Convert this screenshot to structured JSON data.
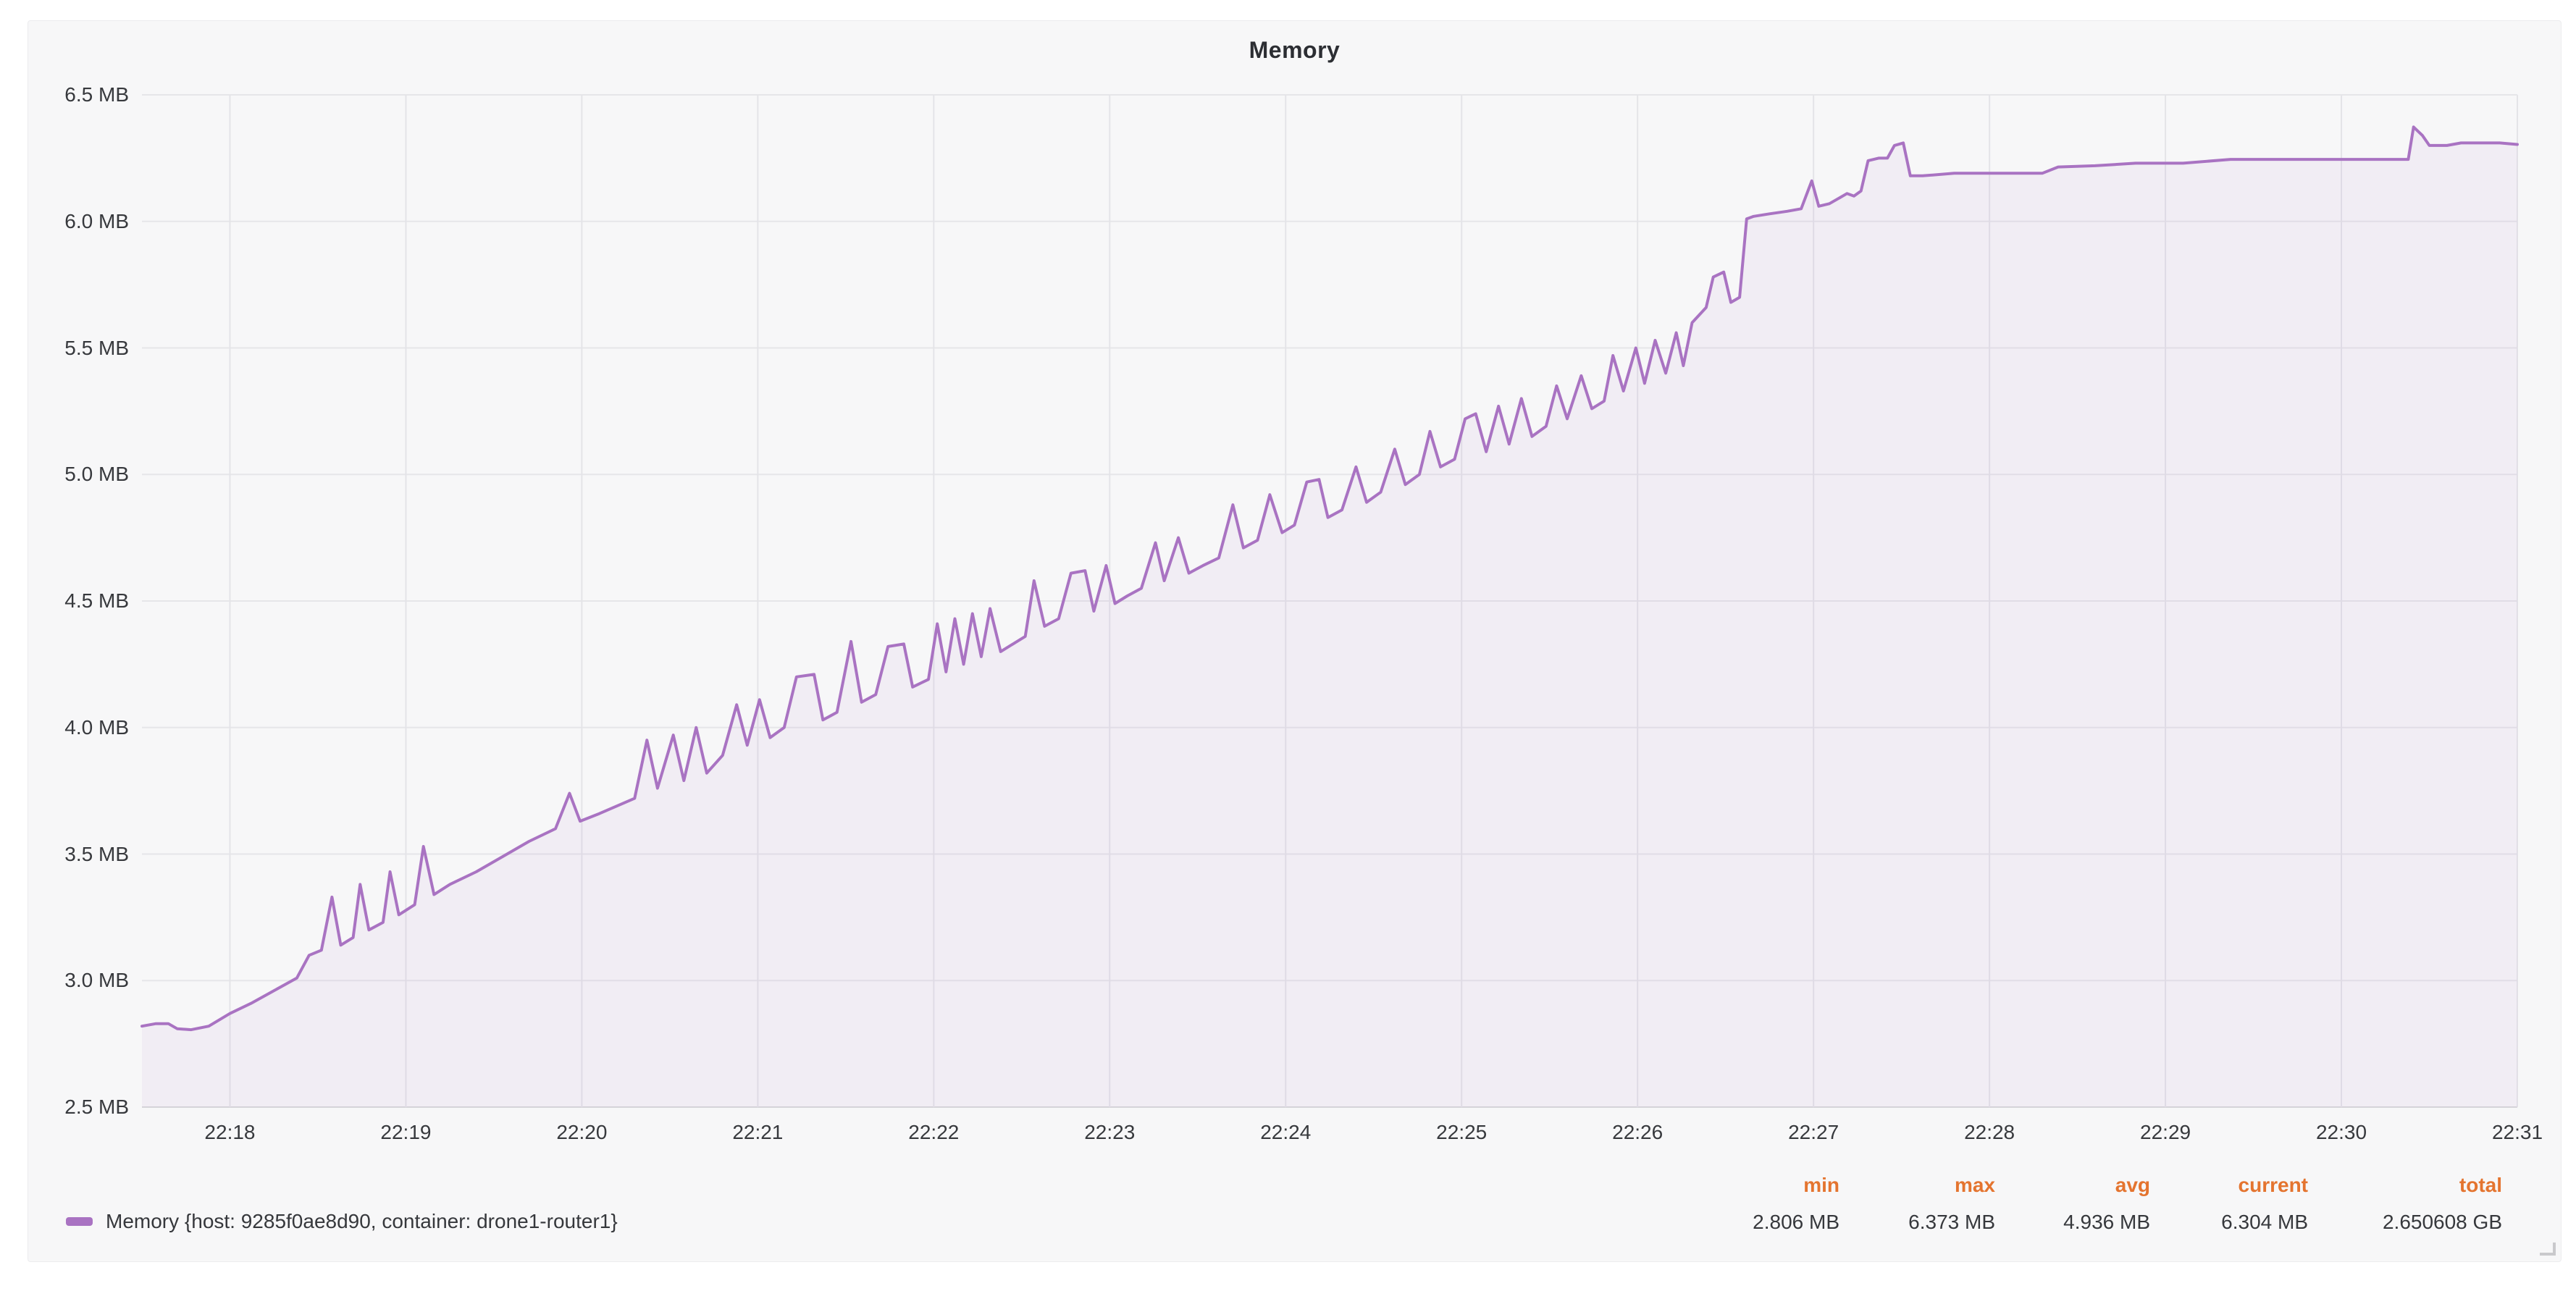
{
  "panel": {
    "title": "Memory"
  },
  "colors": {
    "page_bg": "#ffffff",
    "panel_bg": "#f7f7f8",
    "line": "#a973c2",
    "area_fill": "rgba(169,115,194,0.07)",
    "grid_h": "#e6e6e9",
    "grid_v": "#e4e4e8",
    "axis_bottom": "#d7d7da",
    "axis_text": "#37393d",
    "stat_header": "#e4742f",
    "title_text": "#2c2e33"
  },
  "legend": {
    "marker_icon": "series-color-swatch",
    "label": "Memory {host: 9285f0ae8d90, container: drone1-router1}"
  },
  "stats": {
    "columns": [
      {
        "key": "min",
        "label": "min",
        "value": "2.806 MB",
        "right_offset": 996
      },
      {
        "key": "max",
        "label": "max",
        "value": "6.373 MB",
        "right_offset": 781
      },
      {
        "key": "avg",
        "label": "avg",
        "value": "4.936 MB",
        "right_offset": 567
      },
      {
        "key": "current",
        "label": "current",
        "value": "6.304 MB",
        "right_offset": 349
      },
      {
        "key": "total",
        "label": "total",
        "value": "2.650608 GB",
        "right_offset": 81
      }
    ]
  },
  "chart_data": {
    "type": "line",
    "title": "Memory",
    "xlabel": "",
    "ylabel": "",
    "unit": "MB",
    "grid": true,
    "legend_position": "bottom-left",
    "x_axis": {
      "description": "time of day, minutes after 22:17:00",
      "domain_minutes": [
        0.5,
        14
      ],
      "tick_minutes": [
        1,
        2,
        3,
        4,
        5,
        6,
        7,
        8,
        9,
        10,
        11,
        12,
        13,
        14
      ],
      "tick_labels": [
        "22:18",
        "22:19",
        "22:20",
        "22:21",
        "22:22",
        "22:23",
        "22:24",
        "22:25",
        "22:26",
        "22:27",
        "22:28",
        "22:29",
        "22:30",
        "22:31"
      ]
    },
    "y_axis": {
      "range_mb": [
        2.5,
        6.5
      ],
      "tick_values": [
        6.5,
        6.0,
        5.5,
        5.0,
        4.5,
        4.0,
        3.5,
        3.0,
        2.5
      ],
      "tick_labels": [
        "6.5 MB",
        "6.0 MB",
        "5.5 MB",
        "5.0 MB",
        "4.5 MB",
        "4.0 MB",
        "3.5 MB",
        "3.0 MB",
        "2.5 MB"
      ]
    },
    "series": [
      {
        "name": "Memory {host: 9285f0ae8d90, container: drone1-router1}",
        "color": "#a973c2",
        "stats": {
          "min": "2.806 MB",
          "max": "6.373 MB",
          "avg": "4.936 MB",
          "current": "6.304 MB",
          "total": "2.650608 GB"
        },
        "points_minutes_mb": [
          [
            0.5,
            2.82
          ],
          [
            0.58,
            2.83
          ],
          [
            0.65,
            2.83
          ],
          [
            0.7,
            2.81
          ],
          [
            0.78,
            2.806
          ],
          [
            0.88,
            2.82
          ],
          [
            1.0,
            2.87
          ],
          [
            1.12,
            2.91
          ],
          [
            1.25,
            2.96
          ],
          [
            1.38,
            3.01
          ],
          [
            1.45,
            3.1
          ],
          [
            1.52,
            3.12
          ],
          [
            1.58,
            3.33
          ],
          [
            1.63,
            3.14
          ],
          [
            1.7,
            3.17
          ],
          [
            1.74,
            3.38
          ],
          [
            1.79,
            3.2
          ],
          [
            1.87,
            3.23
          ],
          [
            1.91,
            3.43
          ],
          [
            1.96,
            3.26
          ],
          [
            2.05,
            3.3
          ],
          [
            2.1,
            3.53
          ],
          [
            2.16,
            3.34
          ],
          [
            2.25,
            3.38
          ],
          [
            2.4,
            3.43
          ],
          [
            2.55,
            3.49
          ],
          [
            2.7,
            3.55
          ],
          [
            2.85,
            3.6
          ],
          [
            2.93,
            3.74
          ],
          [
            2.99,
            3.63
          ],
          [
            3.1,
            3.66
          ],
          [
            3.2,
            3.69
          ],
          [
            3.3,
            3.72
          ],
          [
            3.37,
            3.95
          ],
          [
            3.43,
            3.76
          ],
          [
            3.52,
            3.97
          ],
          [
            3.58,
            3.79
          ],
          [
            3.65,
            4.0
          ],
          [
            3.71,
            3.82
          ],
          [
            3.8,
            3.89
          ],
          [
            3.88,
            4.09
          ],
          [
            3.94,
            3.93
          ],
          [
            4.01,
            4.11
          ],
          [
            4.07,
            3.96
          ],
          [
            4.15,
            4.0
          ],
          [
            4.22,
            4.2
          ],
          [
            4.32,
            4.21
          ],
          [
            4.37,
            4.03
          ],
          [
            4.45,
            4.06
          ],
          [
            4.53,
            4.34
          ],
          [
            4.59,
            4.1
          ],
          [
            4.67,
            4.13
          ],
          [
            4.74,
            4.32
          ],
          [
            4.83,
            4.33
          ],
          [
            4.88,
            4.16
          ],
          [
            4.97,
            4.19
          ],
          [
            5.02,
            4.41
          ],
          [
            5.07,
            4.22
          ],
          [
            5.12,
            4.43
          ],
          [
            5.17,
            4.25
          ],
          [
            5.22,
            4.45
          ],
          [
            5.27,
            4.28
          ],
          [
            5.32,
            4.47
          ],
          [
            5.38,
            4.3
          ],
          [
            5.45,
            4.33
          ],
          [
            5.52,
            4.36
          ],
          [
            5.57,
            4.58
          ],
          [
            5.63,
            4.4
          ],
          [
            5.71,
            4.43
          ],
          [
            5.78,
            4.61
          ],
          [
            5.86,
            4.62
          ],
          [
            5.91,
            4.46
          ],
          [
            5.98,
            4.64
          ],
          [
            6.03,
            4.49
          ],
          [
            6.1,
            4.52
          ],
          [
            6.18,
            4.55
          ],
          [
            6.26,
            4.73
          ],
          [
            6.31,
            4.58
          ],
          [
            6.39,
            4.75
          ],
          [
            6.45,
            4.61
          ],
          [
            6.53,
            4.64
          ],
          [
            6.62,
            4.67
          ],
          [
            6.7,
            4.88
          ],
          [
            6.76,
            4.71
          ],
          [
            6.84,
            4.74
          ],
          [
            6.91,
            4.92
          ],
          [
            6.98,
            4.77
          ],
          [
            7.05,
            4.8
          ],
          [
            7.12,
            4.97
          ],
          [
            7.19,
            4.98
          ],
          [
            7.24,
            4.83
          ],
          [
            7.32,
            4.86
          ],
          [
            7.4,
            5.03
          ],
          [
            7.46,
            4.89
          ],
          [
            7.54,
            4.93
          ],
          [
            7.62,
            5.1
          ],
          [
            7.68,
            4.96
          ],
          [
            7.76,
            5.0
          ],
          [
            7.82,
            5.17
          ],
          [
            7.88,
            5.03
          ],
          [
            7.96,
            5.06
          ],
          [
            8.02,
            5.22
          ],
          [
            8.08,
            5.24
          ],
          [
            8.14,
            5.09
          ],
          [
            8.21,
            5.27
          ],
          [
            8.27,
            5.12
          ],
          [
            8.34,
            5.3
          ],
          [
            8.4,
            5.15
          ],
          [
            8.48,
            5.19
          ],
          [
            8.54,
            5.35
          ],
          [
            8.6,
            5.22
          ],
          [
            8.68,
            5.39
          ],
          [
            8.74,
            5.26
          ],
          [
            8.81,
            5.29
          ],
          [
            8.86,
            5.47
          ],
          [
            8.92,
            5.33
          ],
          [
            8.99,
            5.5
          ],
          [
            9.04,
            5.36
          ],
          [
            9.1,
            5.53
          ],
          [
            9.16,
            5.4
          ],
          [
            9.22,
            5.56
          ],
          [
            9.26,
            5.43
          ],
          [
            9.31,
            5.6
          ],
          [
            9.35,
            5.63
          ],
          [
            9.39,
            5.66
          ],
          [
            9.43,
            5.78
          ],
          [
            9.49,
            5.8
          ],
          [
            9.53,
            5.68
          ],
          [
            9.58,
            5.7
          ],
          [
            9.62,
            6.01
          ],
          [
            9.66,
            6.02
          ],
          [
            9.75,
            6.03
          ],
          [
            9.85,
            6.04
          ],
          [
            9.93,
            6.05
          ],
          [
            9.99,
            6.16
          ],
          [
            10.03,
            6.06
          ],
          [
            10.09,
            6.07
          ],
          [
            10.14,
            6.09
          ],
          [
            10.19,
            6.11
          ],
          [
            10.23,
            6.1
          ],
          [
            10.27,
            6.12
          ],
          [
            10.31,
            6.24
          ],
          [
            10.37,
            6.25
          ],
          [
            10.42,
            6.25
          ],
          [
            10.46,
            6.3
          ],
          [
            10.51,
            6.31
          ],
          [
            10.55,
            6.18
          ],
          [
            10.62,
            6.18
          ],
          [
            10.8,
            6.19
          ],
          [
            11.05,
            6.19
          ],
          [
            11.3,
            6.19
          ],
          [
            11.39,
            6.215
          ],
          [
            11.6,
            6.22
          ],
          [
            11.83,
            6.23
          ],
          [
            12.1,
            6.23
          ],
          [
            12.37,
            6.245
          ],
          [
            12.7,
            6.245
          ],
          [
            13.0,
            6.245
          ],
          [
            13.25,
            6.245
          ],
          [
            13.38,
            6.245
          ],
          [
            13.41,
            6.373
          ],
          [
            13.46,
            6.34
          ],
          [
            13.5,
            6.3
          ],
          [
            13.6,
            6.3
          ],
          [
            13.68,
            6.31
          ],
          [
            13.8,
            6.31
          ],
          [
            13.9,
            6.31
          ],
          [
            14.0,
            6.304
          ]
        ]
      }
    ]
  }
}
